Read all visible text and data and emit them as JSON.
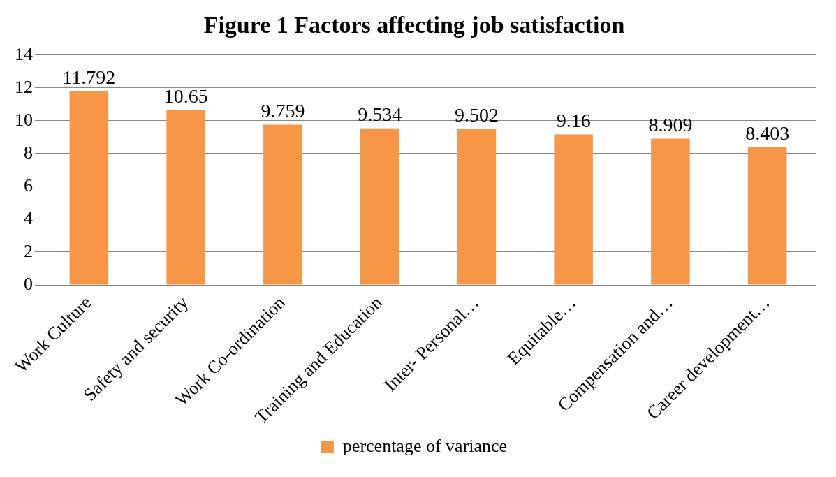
{
  "chart_data": {
    "type": "bar",
    "title": "Figure 1 Factors affecting job satisfaction",
    "categories": [
      "Work Culture",
      "Safety and security",
      "Work Co-ordination",
      "Training and Education",
      "Inter- Personal…",
      "Equitable…",
      "Compensation and…",
      "Career development…"
    ],
    "series": [
      {
        "name": "percentage of variance",
        "color": "#f79646",
        "values": [
          11.792,
          10.65,
          9.759,
          9.534,
          9.502,
          9.16,
          8.909,
          8.403
        ]
      }
    ],
    "ylim": [
      0,
      14
    ],
    "yticks": [
      0,
      2,
      4,
      6,
      8,
      10,
      12,
      14
    ],
    "grid": "y",
    "legend": "bottom",
    "data_labels": true
  }
}
